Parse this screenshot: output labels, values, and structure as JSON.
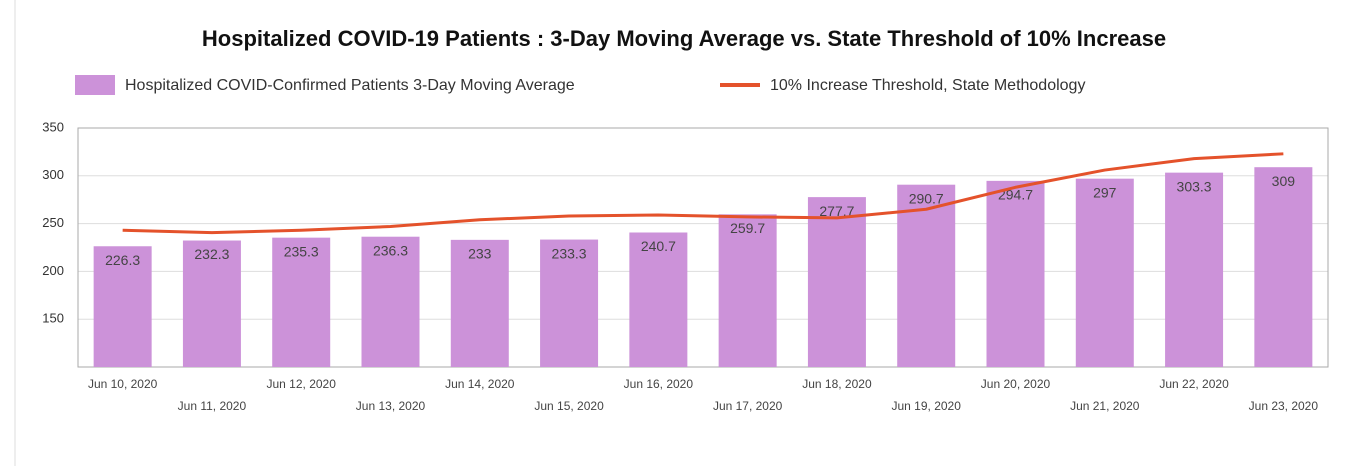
{
  "chart_data": {
    "type": "bar",
    "title": "Hospitalized COVID-19 Patients : 3-Day Moving Average vs. State Threshold of 10% Increase",
    "categories": [
      "Jun 10, 2020",
      "Jun 11, 2020",
      "Jun 12, 2020",
      "Jun 13, 2020",
      "Jun 14, 2020",
      "Jun 15, 2020",
      "Jun 16, 2020",
      "Jun 17, 2020",
      "Jun 18, 2020",
      "Jun 19, 2020",
      "Jun 20, 2020",
      "Jun 21, 2020",
      "Jun 22, 2020",
      "Jun 23, 2020"
    ],
    "series": [
      {
        "name": "Hospitalized COVID-Confirmed Patients 3-Day Moving Average",
        "type": "bar",
        "color": "#cc92d9",
        "values": [
          226.3,
          232.3,
          235.3,
          236.3,
          233,
          233.3,
          240.7,
          259.7,
          277.7,
          290.7,
          294.7,
          297,
          303.3,
          309
        ]
      },
      {
        "name": "10% Increase Threshold, State Methodology",
        "type": "line",
        "color": "#e4522b",
        "values": [
          243,
          240.5,
          243,
          247,
          254,
          258,
          259,
          257,
          256,
          265,
          288,
          306,
          318,
          323
        ]
      }
    ],
    "ylim": [
      100,
      350
    ],
    "yticks": [
      150,
      200,
      250,
      300,
      350
    ],
    "grid": true,
    "legend": "top"
  }
}
